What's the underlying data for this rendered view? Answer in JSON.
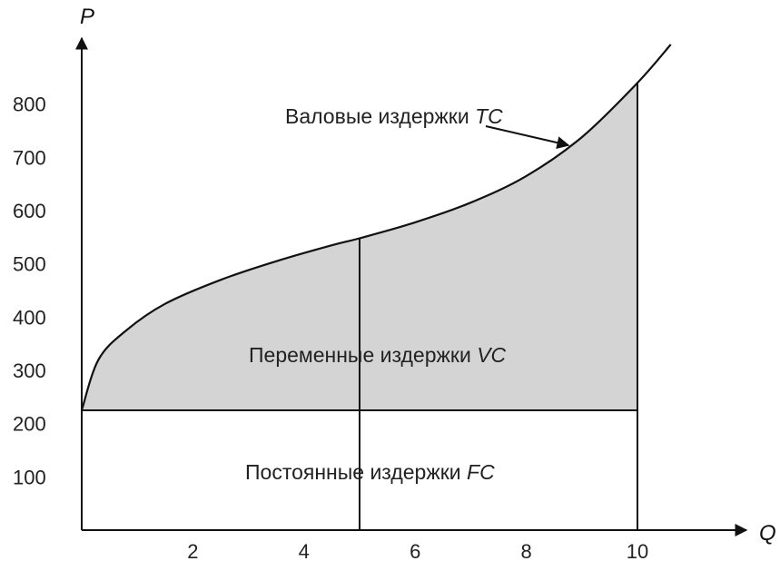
{
  "chart_data": {
    "type": "area",
    "xlabel": "Q",
    "ylabel": "P",
    "xlim": [
      0,
      11
    ],
    "ylim": [
      0,
      1000
    ],
    "x_ticks": [
      2,
      4,
      6,
      8,
      10
    ],
    "y_ticks": [
      100,
      200,
      300,
      400,
      500,
      600,
      700,
      800
    ],
    "fixed_cost": 225,
    "total_cost_curve": [
      {
        "x": 0,
        "y": 225
      },
      {
        "x": 0.3,
        "y": 320
      },
      {
        "x": 0.8,
        "y": 375
      },
      {
        "x": 1.5,
        "y": 425
      },
      {
        "x": 2.5,
        "y": 470
      },
      {
        "x": 3.5,
        "y": 505
      },
      {
        "x": 4.5,
        "y": 535
      },
      {
        "x": 5,
        "y": 548
      },
      {
        "x": 6,
        "y": 578
      },
      {
        "x": 7,
        "y": 615
      },
      {
        "x": 8,
        "y": 665
      },
      {
        "x": 9,
        "y": 738
      },
      {
        "x": 10,
        "y": 840
      },
      {
        "x": 10.6,
        "y": 912
      }
    ],
    "vertical_lines": [
      5,
      10
    ],
    "shaded_region": {
      "x_from": 0,
      "x_to": 10,
      "between": "fixed_cost and total_cost_curve"
    },
    "annotations": {
      "tc": {
        "text": "Валовые издержки ",
        "italic": "TC"
      },
      "vc": {
        "text": "Переменные издержки ",
        "italic": "VC"
      },
      "fc": {
        "text": "Постоянные издержки ",
        "italic": "FC"
      }
    },
    "colors": {
      "fill": "#d4d4d4",
      "line": "#111111"
    }
  }
}
